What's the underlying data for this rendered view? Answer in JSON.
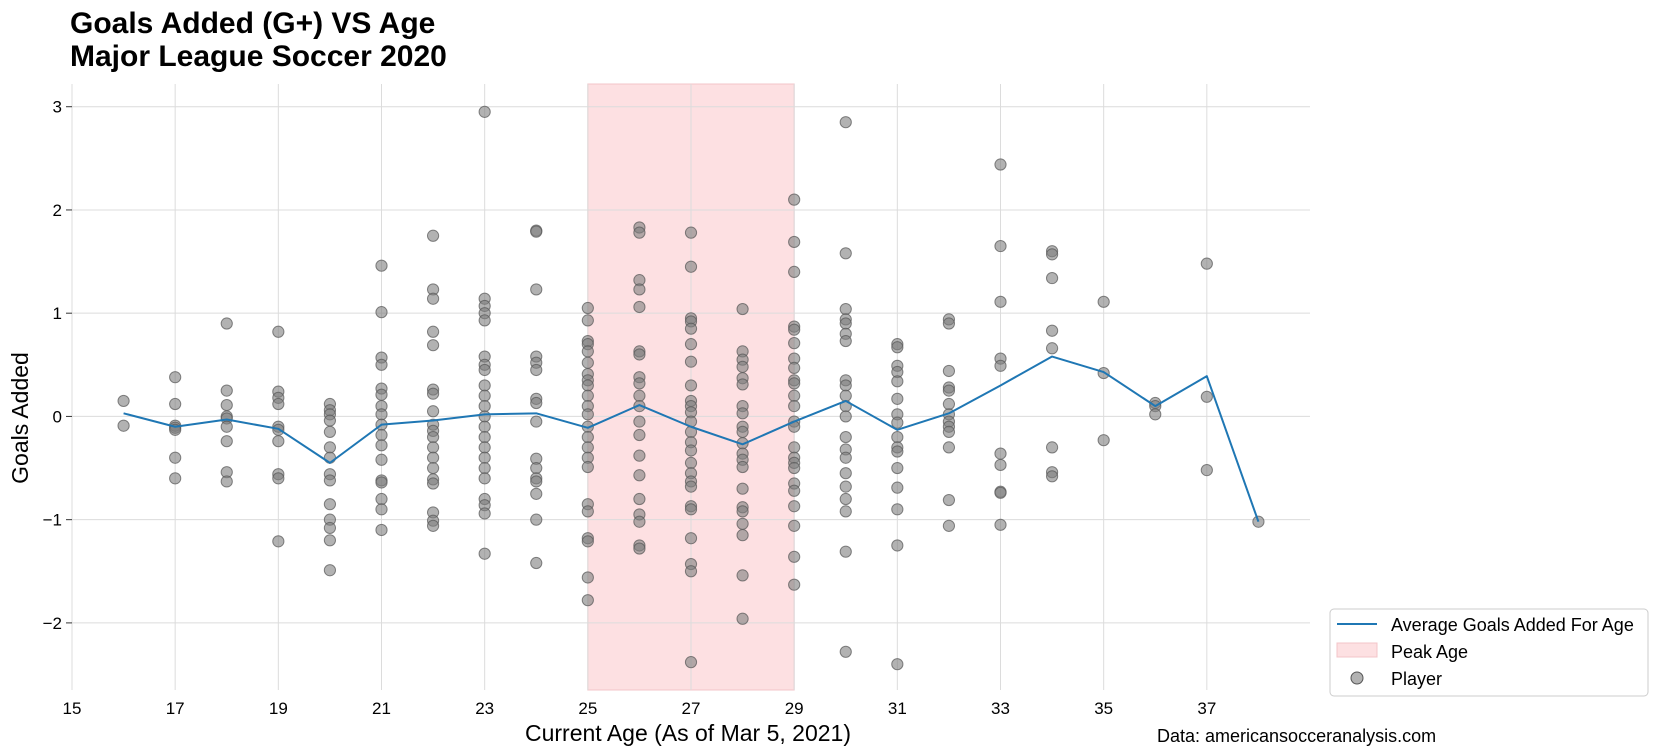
{
  "chart_data": {
    "type": "scatter",
    "title": [
      "Goals Added (G+) VS Age",
      "Major League Soccer 2020"
    ],
    "xlabel": "Current Age (As of Mar 5, 2021)",
    "ylabel": "Goals Added",
    "source": "Data: americansocceranalysis.com",
    "xlim": [
      15,
      39
    ],
    "ylim": [
      -2.65,
      3.22
    ],
    "x_ticks": [
      15,
      17,
      19,
      21,
      23,
      25,
      27,
      29,
      31,
      33,
      35,
      37
    ],
    "x_tick_labels": [
      "15",
      "17",
      "19",
      "21",
      "23",
      "25",
      "27",
      "29",
      "31",
      "33",
      "35",
      "37"
    ],
    "y_ticks": [
      -2,
      -1,
      0,
      1,
      2,
      3
    ],
    "y_tick_labels": [
      "−2",
      "−1",
      "0",
      "1",
      "2",
      "3"
    ],
    "grid": true,
    "legend_position": "bottom-right, outside plot",
    "colors": {
      "line": "#1f77b4",
      "band": "#fde0e2",
      "points": "#7f7f7f"
    },
    "peak_age": {
      "label": "Peak Age",
      "from": 25,
      "to": 29
    },
    "average_series": {
      "name": "Average Goals Added For Age",
      "x": [
        16,
        17,
        18,
        19,
        20,
        21,
        22,
        23,
        24,
        25,
        26,
        27,
        28,
        29,
        30,
        31,
        32,
        33,
        34,
        35,
        36,
        37,
        38
      ],
      "y": [
        0.03,
        -0.1,
        -0.03,
        -0.12,
        -0.45,
        -0.08,
        -0.04,
        0.02,
        0.03,
        -0.11,
        0.11,
        -0.1,
        -0.27,
        -0.05,
        0.15,
        -0.13,
        0.03,
        0.3,
        0.58,
        0.43,
        0.1,
        0.39,
        -1.02
      ]
    },
    "player_series": {
      "name": "Player",
      "points": [
        [
          16,
          0.15
        ],
        [
          16,
          -0.09
        ],
        [
          17,
          0.38
        ],
        [
          17,
          0.12
        ],
        [
          17,
          -0.09
        ],
        [
          17,
          -0.11
        ],
        [
          17,
          -0.13
        ],
        [
          17,
          -0.4
        ],
        [
          17,
          -0.6
        ],
        [
          18,
          0.9
        ],
        [
          18,
          0.25
        ],
        [
          18,
          0.11
        ],
        [
          18,
          0.0
        ],
        [
          18,
          -0.02
        ],
        [
          18,
          -0.1
        ],
        [
          18,
          -0.24
        ],
        [
          18,
          -0.54
        ],
        [
          18,
          -0.63
        ],
        [
          19,
          0.82
        ],
        [
          19,
          0.24
        ],
        [
          19,
          0.18
        ],
        [
          19,
          0.12
        ],
        [
          19,
          -0.1
        ],
        [
          19,
          -0.13
        ],
        [
          19,
          -0.24
        ],
        [
          19,
          -0.56
        ],
        [
          19,
          -0.6
        ],
        [
          19,
          -1.21
        ],
        [
          20,
          0.12
        ],
        [
          20,
          0.06
        ],
        [
          20,
          0.02
        ],
        [
          20,
          -0.04
        ],
        [
          20,
          -0.15
        ],
        [
          20,
          -0.3
        ],
        [
          20,
          -0.4
        ],
        [
          20,
          -0.56
        ],
        [
          20,
          -0.62
        ],
        [
          20,
          -0.85
        ],
        [
          20,
          -1.0
        ],
        [
          20,
          -1.08
        ],
        [
          20,
          -1.2
        ],
        [
          20,
          -1.49
        ],
        [
          21,
          1.46
        ],
        [
          21,
          1.01
        ],
        [
          21,
          0.57
        ],
        [
          21,
          0.5
        ],
        [
          21,
          0.27
        ],
        [
          21,
          0.21
        ],
        [
          21,
          0.1
        ],
        [
          21,
          0.02
        ],
        [
          21,
          -0.08
        ],
        [
          21,
          -0.18
        ],
        [
          21,
          -0.28
        ],
        [
          21,
          -0.42
        ],
        [
          21,
          -0.62
        ],
        [
          21,
          -0.64
        ],
        [
          21,
          -0.8
        ],
        [
          21,
          -0.9
        ],
        [
          21,
          -1.1
        ],
        [
          22,
          1.75
        ],
        [
          22,
          1.23
        ],
        [
          22,
          1.14
        ],
        [
          22,
          0.82
        ],
        [
          22,
          0.69
        ],
        [
          22,
          0.26
        ],
        [
          22,
          0.22
        ],
        [
          22,
          0.05
        ],
        [
          22,
          -0.08
        ],
        [
          22,
          -0.14
        ],
        [
          22,
          -0.2
        ],
        [
          22,
          -0.3
        ],
        [
          22,
          -0.4
        ],
        [
          22,
          -0.5
        ],
        [
          22,
          -0.61
        ],
        [
          22,
          -0.65
        ],
        [
          22,
          -0.93
        ],
        [
          22,
          -1.01
        ],
        [
          22,
          -1.06
        ],
        [
          23,
          2.95
        ],
        [
          23,
          1.14
        ],
        [
          23,
          1.07
        ],
        [
          23,
          1.0
        ],
        [
          23,
          0.93
        ],
        [
          23,
          0.58
        ],
        [
          23,
          0.5
        ],
        [
          23,
          0.45
        ],
        [
          23,
          0.3
        ],
        [
          23,
          0.2
        ],
        [
          23,
          0.1
        ],
        [
          23,
          0.0
        ],
        [
          23,
          -0.1
        ],
        [
          23,
          -0.2
        ],
        [
          23,
          -0.3
        ],
        [
          23,
          -0.4
        ],
        [
          23,
          -0.5
        ],
        [
          23,
          -0.6
        ],
        [
          23,
          -0.8
        ],
        [
          23,
          -0.86
        ],
        [
          23,
          -0.94
        ],
        [
          23,
          -1.33
        ],
        [
          24,
          1.8
        ],
        [
          24,
          1.79
        ],
        [
          24,
          1.23
        ],
        [
          24,
          0.58
        ],
        [
          24,
          0.52
        ],
        [
          24,
          0.45
        ],
        [
          24,
          0.17
        ],
        [
          24,
          0.13
        ],
        [
          24,
          -0.05
        ],
        [
          24,
          -0.41
        ],
        [
          24,
          -0.5
        ],
        [
          24,
          -0.6
        ],
        [
          24,
          -0.63
        ],
        [
          24,
          -0.75
        ],
        [
          24,
          -1.0
        ],
        [
          24,
          -1.42
        ],
        [
          25,
          1.05
        ],
        [
          25,
          0.93
        ],
        [
          25,
          0.73
        ],
        [
          25,
          0.7
        ],
        [
          25,
          0.63
        ],
        [
          25,
          0.52
        ],
        [
          25,
          0.41
        ],
        [
          25,
          0.35
        ],
        [
          25,
          0.3
        ],
        [
          25,
          0.2
        ],
        [
          25,
          0.1
        ],
        [
          25,
          0.02
        ],
        [
          25,
          -0.1
        ],
        [
          25,
          -0.2
        ],
        [
          25,
          -0.3
        ],
        [
          25,
          -0.4
        ],
        [
          25,
          -0.49
        ],
        [
          25,
          -0.85
        ],
        [
          25,
          -0.92
        ],
        [
          25,
          -1.18
        ],
        [
          25,
          -1.21
        ],
        [
          25,
          -1.56
        ],
        [
          25,
          -1.78
        ],
        [
          26,
          1.83
        ],
        [
          26,
          1.78
        ],
        [
          26,
          1.32
        ],
        [
          26,
          1.23
        ],
        [
          26,
          1.06
        ],
        [
          26,
          0.63
        ],
        [
          26,
          0.6
        ],
        [
          26,
          0.38
        ],
        [
          26,
          0.32
        ],
        [
          26,
          0.2
        ],
        [
          26,
          0.1
        ],
        [
          26,
          -0.05
        ],
        [
          26,
          -0.18
        ],
        [
          26,
          -0.38
        ],
        [
          26,
          -0.57
        ],
        [
          26,
          -0.8
        ],
        [
          26,
          -0.95
        ],
        [
          26,
          -1.02
        ],
        [
          26,
          -1.25
        ],
        [
          26,
          -1.28
        ],
        [
          27,
          1.78
        ],
        [
          27,
          1.45
        ],
        [
          27,
          0.95
        ],
        [
          27,
          0.92
        ],
        [
          27,
          0.85
        ],
        [
          27,
          0.7
        ],
        [
          27,
          0.53
        ],
        [
          27,
          0.3
        ],
        [
          27,
          0.15
        ],
        [
          27,
          0.1
        ],
        [
          27,
          0.04
        ],
        [
          27,
          -0.05
        ],
        [
          27,
          -0.15
        ],
        [
          27,
          -0.25
        ],
        [
          27,
          -0.33
        ],
        [
          27,
          -0.45
        ],
        [
          27,
          -0.55
        ],
        [
          27,
          -0.63
        ],
        [
          27,
          -0.68
        ],
        [
          27,
          -0.87
        ],
        [
          27,
          -0.9
        ],
        [
          27,
          -1.18
        ],
        [
          27,
          -1.43
        ],
        [
          27,
          -1.5
        ],
        [
          27,
          -2.38
        ],
        [
          28,
          1.04
        ],
        [
          28,
          0.63
        ],
        [
          28,
          0.55
        ],
        [
          28,
          0.48
        ],
        [
          28,
          0.37
        ],
        [
          28,
          0.31
        ],
        [
          28,
          0.1
        ],
        [
          28,
          0.03
        ],
        [
          28,
          -0.1
        ],
        [
          28,
          -0.15
        ],
        [
          28,
          -0.26
        ],
        [
          28,
          -0.36
        ],
        [
          28,
          -0.42
        ],
        [
          28,
          -0.49
        ],
        [
          28,
          -0.7
        ],
        [
          28,
          -0.88
        ],
        [
          28,
          -0.92
        ],
        [
          28,
          -1.04
        ],
        [
          28,
          -1.15
        ],
        [
          28,
          -1.54
        ],
        [
          28,
          -1.96
        ],
        [
          29,
          2.1
        ],
        [
          29,
          1.69
        ],
        [
          29,
          1.4
        ],
        [
          29,
          0.87
        ],
        [
          29,
          0.84
        ],
        [
          29,
          0.71
        ],
        [
          29,
          0.56
        ],
        [
          29,
          0.47
        ],
        [
          29,
          0.35
        ],
        [
          29,
          0.32
        ],
        [
          29,
          0.2
        ],
        [
          29,
          0.1
        ],
        [
          29,
          -0.05
        ],
        [
          29,
          -0.1
        ],
        [
          29,
          -0.3
        ],
        [
          29,
          -0.4
        ],
        [
          29,
          -0.45
        ],
        [
          29,
          -0.5
        ],
        [
          29,
          -0.65
        ],
        [
          29,
          -0.72
        ],
        [
          29,
          -0.87
        ],
        [
          29,
          -1.06
        ],
        [
          29,
          -1.36
        ],
        [
          29,
          -1.63
        ],
        [
          30,
          2.85
        ],
        [
          30,
          1.58
        ],
        [
          30,
          1.04
        ],
        [
          30,
          0.94
        ],
        [
          30,
          0.9
        ],
        [
          30,
          0.8
        ],
        [
          30,
          0.73
        ],
        [
          30,
          0.35
        ],
        [
          30,
          0.3
        ],
        [
          30,
          0.2
        ],
        [
          30,
          0.1
        ],
        [
          30,
          0.0
        ],
        [
          30,
          -0.2
        ],
        [
          30,
          -0.32
        ],
        [
          30,
          -0.4
        ],
        [
          30,
          -0.55
        ],
        [
          30,
          -0.68
        ],
        [
          30,
          -0.8
        ],
        [
          30,
          -0.92
        ],
        [
          30,
          -1.31
        ],
        [
          30,
          -2.28
        ],
        [
          31,
          0.7
        ],
        [
          31,
          0.67
        ],
        [
          31,
          0.49
        ],
        [
          31,
          0.43
        ],
        [
          31,
          0.34
        ],
        [
          31,
          0.17
        ],
        [
          31,
          0.02
        ],
        [
          31,
          -0.06
        ],
        [
          31,
          -0.2
        ],
        [
          31,
          -0.3
        ],
        [
          31,
          -0.34
        ],
        [
          31,
          -0.5
        ],
        [
          31,
          -0.69
        ],
        [
          31,
          -0.9
        ],
        [
          31,
          -1.25
        ],
        [
          31,
          -2.4
        ],
        [
          32,
          0.94
        ],
        [
          32,
          0.9
        ],
        [
          32,
          0.44
        ],
        [
          32,
          0.28
        ],
        [
          32,
          0.25
        ],
        [
          32,
          0.12
        ],
        [
          32,
          0.02
        ],
        [
          32,
          -0.05
        ],
        [
          32,
          -0.1
        ],
        [
          32,
          -0.15
        ],
        [
          32,
          -0.3
        ],
        [
          32,
          -0.81
        ],
        [
          32,
          -1.06
        ],
        [
          33,
          2.44
        ],
        [
          33,
          1.65
        ],
        [
          33,
          1.11
        ],
        [
          33,
          0.56
        ],
        [
          33,
          0.49
        ],
        [
          33,
          -0.36
        ],
        [
          33,
          -0.47
        ],
        [
          33,
          -0.73
        ],
        [
          33,
          -0.74
        ],
        [
          33,
          -1.05
        ],
        [
          34,
          1.6
        ],
        [
          34,
          1.57
        ],
        [
          34,
          1.34
        ],
        [
          34,
          0.83
        ],
        [
          34,
          0.66
        ],
        [
          34,
          -0.3
        ],
        [
          34,
          -0.54
        ],
        [
          34,
          -0.58
        ],
        [
          35,
          1.11
        ],
        [
          35,
          0.42
        ],
        [
          35,
          -0.23
        ],
        [
          36,
          0.13
        ],
        [
          36,
          0.1
        ],
        [
          36,
          0.02
        ],
        [
          37,
          1.48
        ],
        [
          37,
          0.19
        ],
        [
          37,
          -0.52
        ],
        [
          38,
          -1.02
        ]
      ]
    }
  }
}
